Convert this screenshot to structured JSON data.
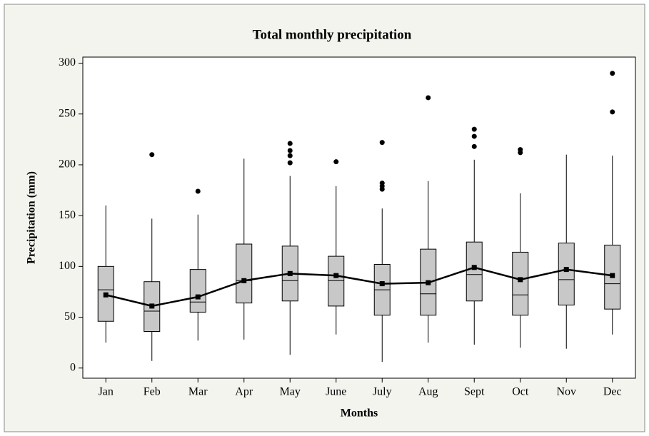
{
  "chart_data": {
    "type": "box",
    "title": "Total monthly precipitation",
    "x_label": "Months",
    "y_label": "Precipitation (mm)",
    "categories": [
      "Jan",
      "Feb",
      "Mar",
      "Apr",
      "May",
      "June",
      "July",
      "Aug",
      "Sept",
      "Oct",
      "Nov",
      "Dec"
    ],
    "whisker_low": [
      25,
      7,
      27,
      28,
      13,
      33,
      6,
      25,
      23,
      20,
      19,
      33
    ],
    "q1": [
      46,
      36,
      55,
      64,
      66,
      61,
      52,
      52,
      66,
      52,
      62,
      58
    ],
    "median": [
      77,
      56,
      65,
      86,
      86,
      86,
      77,
      73,
      92,
      72,
      87,
      83
    ],
    "q3": [
      100,
      85,
      97,
      122,
      120,
      110,
      102,
      117,
      124,
      114,
      123,
      121
    ],
    "whisker_high": [
      160,
      147,
      151,
      206,
      189,
      179,
      157,
      184,
      205,
      172,
      210,
      209
    ],
    "mean": [
      72,
      61,
      70,
      86,
      93,
      91,
      83,
      84,
      99,
      87,
      97,
      91
    ],
    "outliers": [
      [],
      [
        210
      ],
      [
        174
      ],
      [],
      [
        202,
        209,
        214,
        221
      ],
      [
        203
      ],
      [
        176,
        179,
        182,
        222
      ],
      [
        266
      ],
      [
        218,
        228,
        235
      ],
      [
        212,
        215
      ],
      [],
      [
        252,
        290
      ]
    ],
    "box_color": "#c8c8c8",
    "mean_color": "#000000",
    "ylim": [
      -10,
      306
    ],
    "yticks": [
      0,
      50,
      100,
      150,
      200,
      250,
      300
    ]
  }
}
